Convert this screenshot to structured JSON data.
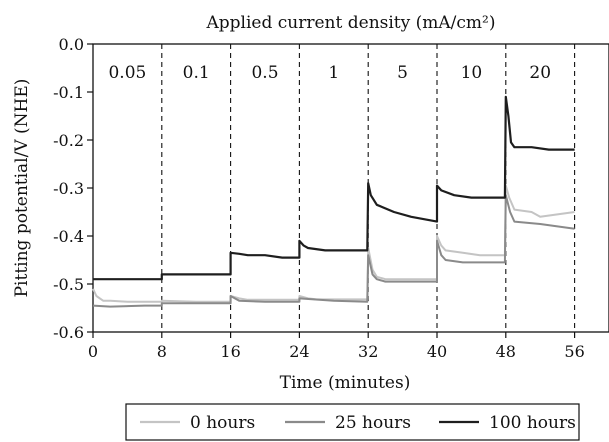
{
  "chart_data": {
    "type": "line",
    "title": "Applied current density (mA/cm²)",
    "xlabel": "Time (minutes)",
    "ylabel": "Pitting potential/V (NHE)",
    "xlim": [
      0,
      60
    ],
    "ylim": [
      -0.6,
      0.0
    ],
    "xticks": [
      0,
      8,
      16,
      24,
      32,
      40,
      48,
      56
    ],
    "yticks": [
      0.0,
      -0.1,
      -0.2,
      -0.3,
      -0.4,
      -0.5,
      -0.6
    ],
    "ytick_labels": [
      "0.0",
      "-0.1",
      "-0.2",
      "-0.3",
      "-0.4",
      "-0.5",
      "-0.6"
    ],
    "grid": false,
    "legend_position": "bottom",
    "segment_boundaries": [
      8,
      16,
      24,
      32,
      40,
      48,
      56
    ],
    "segments": [
      {
        "label": "0.05",
        "x_center": 4
      },
      {
        "label": "0.1",
        "x_center": 12
      },
      {
        "label": "0.5",
        "x_center": 20
      },
      {
        "label": "1",
        "x_center": 28
      },
      {
        "label": "5",
        "x_center": 36
      },
      {
        "label": "10",
        "x_center": 44
      },
      {
        "label": "20",
        "x_center": 52
      }
    ],
    "series": [
      {
        "name": "0 hours",
        "color": "#c4c4c4",
        "points": [
          [
            0,
            -0.51
          ],
          [
            0.4,
            -0.525
          ],
          [
            1.2,
            -0.535
          ],
          [
            2,
            -0.535
          ],
          [
            4,
            -0.537
          ],
          [
            8,
            -0.537
          ],
          [
            8,
            -0.535
          ],
          [
            12,
            -0.537
          ],
          [
            16,
            -0.537
          ],
          [
            16,
            -0.525
          ],
          [
            17,
            -0.53
          ],
          [
            18,
            -0.533
          ],
          [
            24,
            -0.533
          ],
          [
            24,
            -0.525
          ],
          [
            25,
            -0.53
          ],
          [
            26,
            -0.532
          ],
          [
            31.9,
            -0.532
          ],
          [
            32,
            -0.425
          ],
          [
            32.5,
            -0.47
          ],
          [
            33,
            -0.485
          ],
          [
            34,
            -0.49
          ],
          [
            40,
            -0.49
          ],
          [
            40,
            -0.4
          ],
          [
            40.5,
            -0.42
          ],
          [
            41,
            -0.43
          ],
          [
            43,
            -0.435
          ],
          [
            45,
            -0.44
          ],
          [
            47.9,
            -0.44
          ],
          [
            48,
            -0.295
          ],
          [
            48.4,
            -0.32
          ],
          [
            49,
            -0.345
          ],
          [
            51,
            -0.35
          ],
          [
            52,
            -0.36
          ],
          [
            54,
            -0.355
          ],
          [
            56,
            -0.35
          ]
        ]
      },
      {
        "name": "25 hours",
        "color": "#8a8a8a",
        "points": [
          [
            0,
            -0.545
          ],
          [
            2,
            -0.547
          ],
          [
            6,
            -0.545
          ],
          [
            8,
            -0.545
          ],
          [
            8,
            -0.54
          ],
          [
            12,
            -0.54
          ],
          [
            16,
            -0.54
          ],
          [
            16,
            -0.525
          ],
          [
            17,
            -0.535
          ],
          [
            20,
            -0.537
          ],
          [
            24,
            -0.537
          ],
          [
            24,
            -0.53
          ],
          [
            28,
            -0.535
          ],
          [
            31.9,
            -0.537
          ],
          [
            32,
            -0.44
          ],
          [
            32.5,
            -0.48
          ],
          [
            33,
            -0.49
          ],
          [
            34,
            -0.495
          ],
          [
            40,
            -0.495
          ],
          [
            40,
            -0.41
          ],
          [
            40.5,
            -0.44
          ],
          [
            41,
            -0.45
          ],
          [
            43,
            -0.455
          ],
          [
            47.9,
            -0.455
          ],
          [
            48,
            -0.315
          ],
          [
            48.5,
            -0.35
          ],
          [
            49,
            -0.37
          ],
          [
            52,
            -0.375
          ],
          [
            54,
            -0.38
          ],
          [
            56,
            -0.385
          ]
        ]
      },
      {
        "name": "100 hours",
        "color": "#1e1e1e",
        "points": [
          [
            0,
            -0.49
          ],
          [
            8,
            -0.49
          ],
          [
            8,
            -0.48
          ],
          [
            16,
            -0.48
          ],
          [
            16,
            -0.435
          ],
          [
            17,
            -0.437
          ],
          [
            18,
            -0.44
          ],
          [
            20,
            -0.44
          ],
          [
            22,
            -0.445
          ],
          [
            24,
            -0.445
          ],
          [
            24,
            -0.41
          ],
          [
            24.5,
            -0.42
          ],
          [
            25,
            -0.425
          ],
          [
            27,
            -0.43
          ],
          [
            31.9,
            -0.43
          ],
          [
            32,
            -0.29
          ],
          [
            32.3,
            -0.315
          ],
          [
            33,
            -0.335
          ],
          [
            35,
            -0.35
          ],
          [
            37,
            -0.36
          ],
          [
            40,
            -0.37
          ],
          [
            40,
            -0.295
          ],
          [
            40.5,
            -0.305
          ],
          [
            42,
            -0.315
          ],
          [
            44,
            -0.32
          ],
          [
            47.9,
            -0.32
          ],
          [
            48,
            -0.11
          ],
          [
            48.3,
            -0.15
          ],
          [
            48.6,
            -0.205
          ],
          [
            49,
            -0.215
          ],
          [
            51,
            -0.215
          ],
          [
            53,
            -0.22
          ],
          [
            56,
            -0.22
          ]
        ]
      }
    ]
  }
}
